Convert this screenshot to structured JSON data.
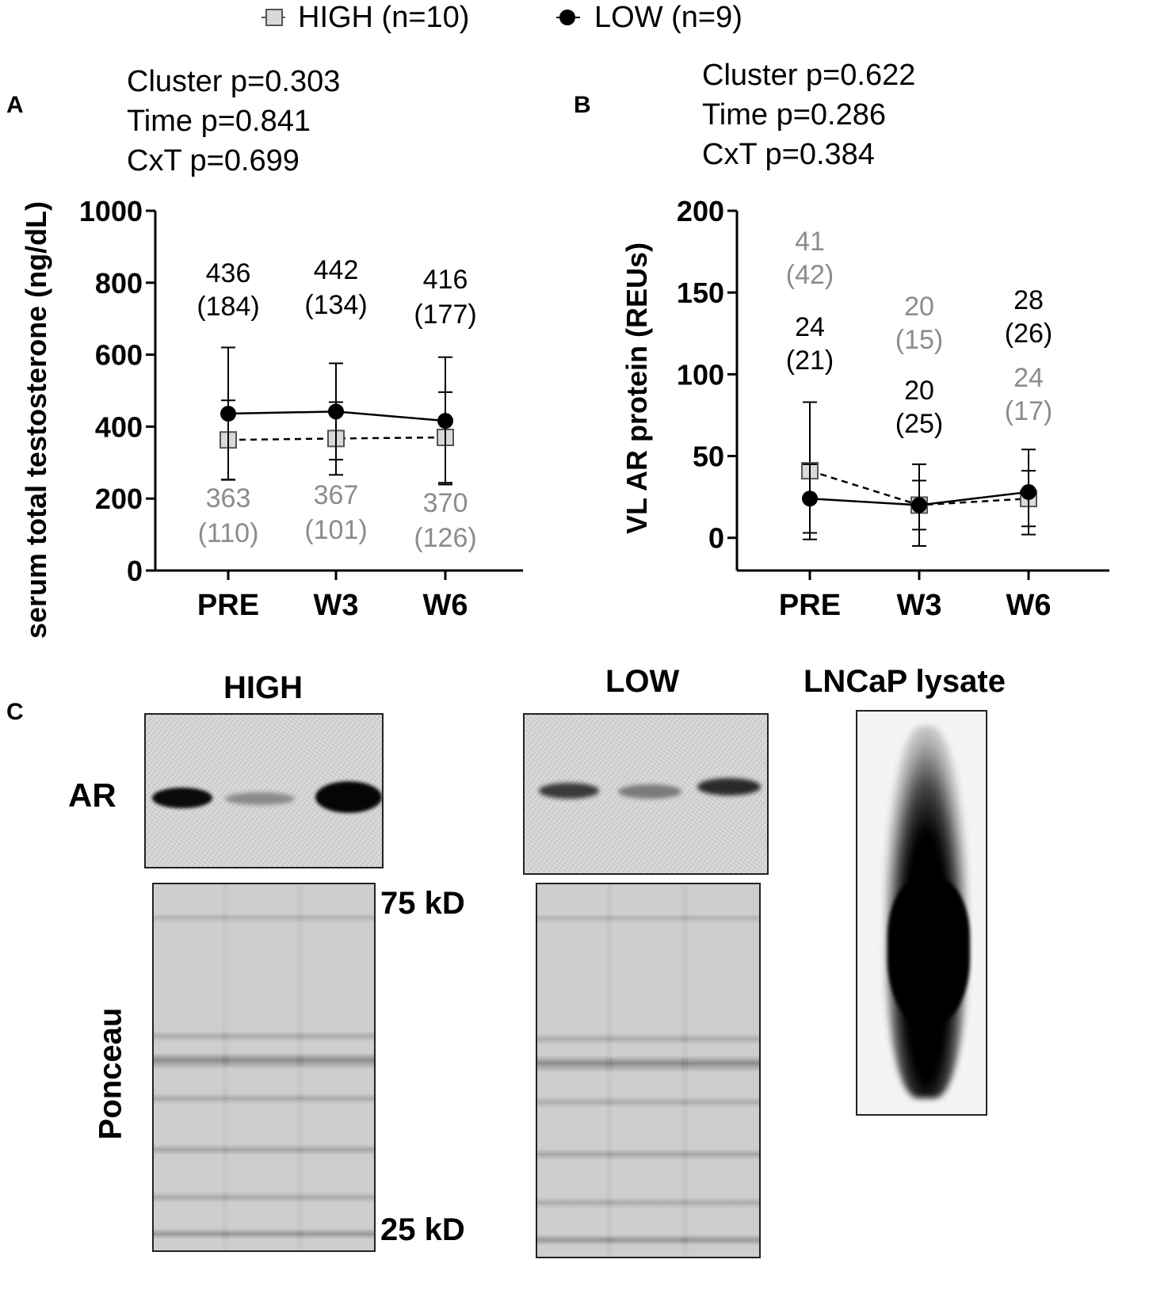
{
  "legend": {
    "high_label": "HIGH (n=10)",
    "low_label": "LOW (n=9)"
  },
  "panel_letters": {
    "a": "A",
    "b": "B",
    "c": "C"
  },
  "colors": {
    "high": "#8c8c8c",
    "low": "#000000",
    "high_marker_fill": "#d9d9d9"
  },
  "chart_data": [
    {
      "type": "line",
      "panel": "A",
      "stats": [
        "Cluster p=0.303",
        "Time p=0.841",
        "CxT p=0.699"
      ],
      "ylabel": "serum total testosterone (ng/dL)",
      "ylim": [
        0,
        1000
      ],
      "yticks": [
        "0",
        "200",
        "400",
        "600",
        "800",
        "1000"
      ],
      "categories": [
        "PRE",
        "W3",
        "W6"
      ],
      "series": [
        {
          "name": "HIGH (n=10)",
          "values": [
            363,
            367,
            370
          ],
          "sd": [
            110,
            101,
            126
          ],
          "labels": [
            [
              "363",
              "(110)"
            ],
            [
              "367",
              "(101)"
            ],
            [
              "370",
              "(126)"
            ]
          ]
        },
        {
          "name": "LOW (n=9)",
          "values": [
            436,
            442,
            416
          ],
          "sd": [
            184,
            134,
            177
          ],
          "labels": [
            [
              "436",
              "(184)"
            ],
            [
              "442",
              "(134)"
            ],
            [
              "416",
              "(177)"
            ]
          ]
        }
      ]
    },
    {
      "type": "line",
      "panel": "B",
      "stats": [
        "Cluster p=0.622",
        "Time p=0.286",
        "CxT p=0.384"
      ],
      "ylabel": "VL AR protein (REUs)",
      "ylim": [
        -20,
        200
      ],
      "yticks": [
        "0",
        "50",
        "100",
        "150",
        "200"
      ],
      "categories": [
        "PRE",
        "W3",
        "W6"
      ],
      "series": [
        {
          "name": "HIGH (n=10)",
          "values": [
            41,
            20,
            24
          ],
          "sd": [
            42,
            15,
            17
          ],
          "labels": [
            [
              "41",
              "(42)"
            ],
            [
              "20",
              "(15)"
            ],
            [
              "24",
              "(17)"
            ]
          ]
        },
        {
          "name": "LOW (n=9)",
          "values": [
            24,
            20,
            28
          ],
          "sd": [
            21,
            25,
            26
          ],
          "labels": [
            [
              "24",
              "(21)"
            ],
            [
              "20",
              "(25)"
            ],
            [
              "28",
              "(26)"
            ]
          ]
        }
      ]
    }
  ],
  "blots": {
    "high_title": "HIGH",
    "low_title": "LOW",
    "lncap_title": "LNCaP lysate",
    "ar_label": "AR",
    "ponceau_label": "Ponceau",
    "marker_75": "75 kD",
    "marker_25": "25 kD"
  }
}
